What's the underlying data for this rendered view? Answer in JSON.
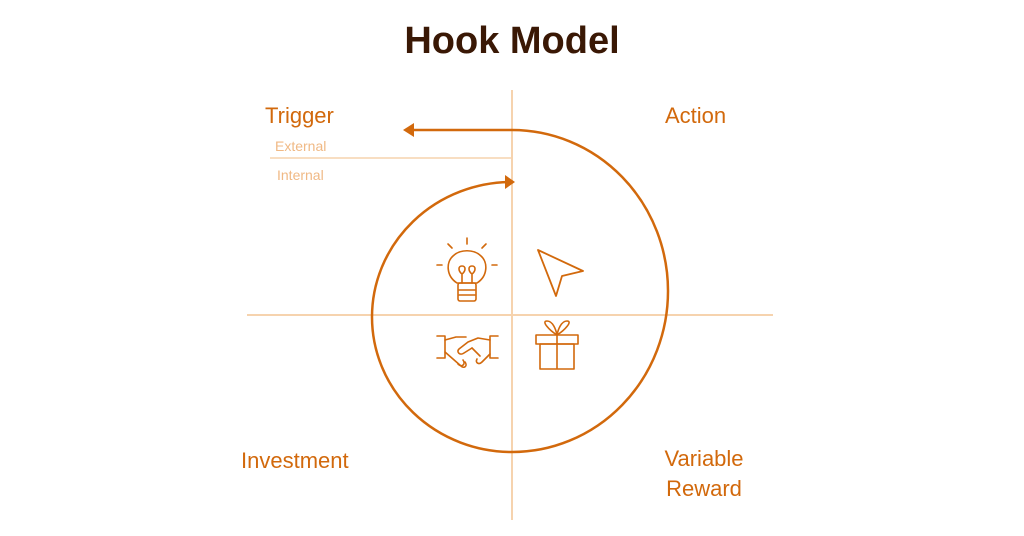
{
  "title": "Hook Model",
  "stages": {
    "trigger": "Trigger",
    "action": "Action",
    "variable_reward_line1": "Variable",
    "variable_reward_line2": "Reward",
    "investment": "Investment"
  },
  "trigger_types": {
    "external": "External",
    "internal": "Internal"
  },
  "icons": {
    "trigger": "lightbulb-icon",
    "action": "cursor-pointer-icon",
    "variable_reward": "gift-icon",
    "investment": "handshake-icon"
  },
  "colors": {
    "title": "#3a1805",
    "accent": "#d2690c",
    "light_accent": "#f0b985",
    "axis": "#f6d3ae"
  }
}
